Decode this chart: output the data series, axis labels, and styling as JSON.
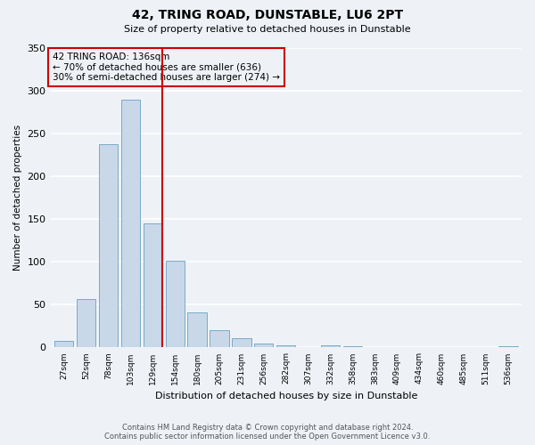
{
  "title": "42, TRING ROAD, DUNSTABLE, LU6 2PT",
  "subtitle": "Size of property relative to detached houses in Dunstable",
  "xlabel": "Distribution of detached houses by size in Dunstable",
  "ylabel": "Number of detached properties",
  "bar_color": "#c8d8e8",
  "bar_edge_color": "#7aaac8",
  "categories": [
    "27sqm",
    "52sqm",
    "78sqm",
    "103sqm",
    "129sqm",
    "154sqm",
    "180sqm",
    "205sqm",
    "231sqm",
    "256sqm",
    "282sqm",
    "307sqm",
    "332sqm",
    "358sqm",
    "383sqm",
    "409sqm",
    "434sqm",
    "460sqm",
    "485sqm",
    "511sqm",
    "536sqm"
  ],
  "values": [
    8,
    57,
    238,
    290,
    145,
    101,
    41,
    20,
    11,
    5,
    3,
    0,
    3,
    2,
    0,
    0,
    0,
    0,
    0,
    0,
    2
  ],
  "ylim": [
    0,
    350
  ],
  "yticks": [
    0,
    50,
    100,
    150,
    200,
    250,
    300,
    350
  ],
  "property_line_x": 4.42,
  "property_line_color": "#cc0000",
  "annotation_title": "42 TRING ROAD: 136sqm",
  "annotation_line1": "← 70% of detached houses are smaller (636)",
  "annotation_line2": "30% of semi-detached houses are larger (274) →",
  "annotation_box_color": "#cc0000",
  "background_color": "#eef2f7",
  "grid_color": "#ffffff",
  "footer_line1": "Contains HM Land Registry data © Crown copyright and database right 2024.",
  "footer_line2": "Contains public sector information licensed under the Open Government Licence v3.0."
}
